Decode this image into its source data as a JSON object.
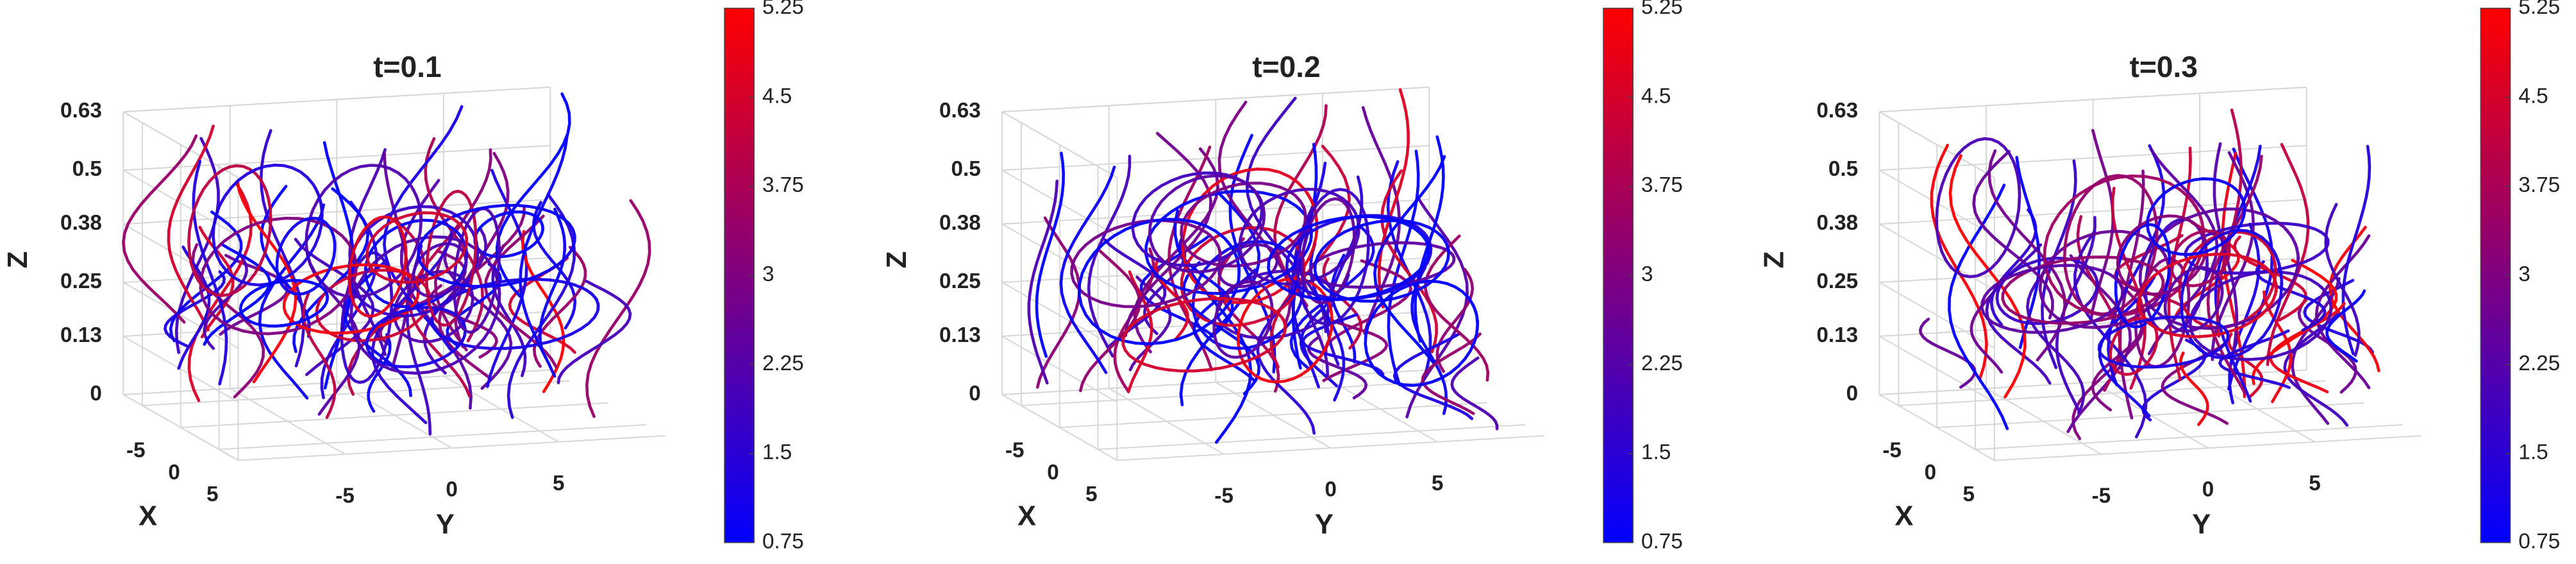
{
  "chart_data": [
    {
      "type": "streamline3d",
      "title": "t=0.1",
      "xlabel": "X",
      "ylabel": "Y",
      "zlabel": "Z",
      "xlim": [
        -7.5,
        7.5
      ],
      "xticks": [
        -5,
        0,
        5
      ],
      "ylim": [
        -10,
        10
      ],
      "yticks": [
        -5,
        0,
        5
      ],
      "zlim": [
        0,
        0.63
      ],
      "zticks": [
        0,
        0.13,
        0.25,
        0.38,
        0.5,
        0.63
      ],
      "clim": [
        0.75,
        5.25
      ],
      "cticks": [
        0.75,
        1.5,
        2.25,
        3,
        3.75,
        4.5,
        5.25
      ],
      "colormap": [
        "#0000ff",
        "#ff0000"
      ],
      "grid": true
    },
    {
      "type": "streamline3d",
      "title": "t=0.2",
      "xlabel": "X",
      "ylabel": "Y",
      "zlabel": "Z",
      "xlim": [
        -7.5,
        7.5
      ],
      "xticks": [
        -5,
        0,
        5
      ],
      "ylim": [
        -10,
        10
      ],
      "yticks": [
        -5,
        0,
        5
      ],
      "zlim": [
        0,
        0.63
      ],
      "zticks": [
        0,
        0.13,
        0.25,
        0.38,
        0.5,
        0.63
      ],
      "clim": [
        0.75,
        5.25
      ],
      "cticks": [
        0.75,
        1.5,
        2.25,
        3,
        3.75,
        4.5,
        5.25
      ],
      "colormap": [
        "#0000ff",
        "#ff0000"
      ],
      "grid": true
    },
    {
      "type": "streamline3d",
      "title": "t=0.3",
      "xlabel": "X",
      "ylabel": "Y",
      "zlabel": "Z",
      "xlim": [
        -7.5,
        7.5
      ],
      "xticks": [
        -5,
        0,
        5
      ],
      "ylim": [
        -10,
        10
      ],
      "yticks": [
        -5,
        0,
        5
      ],
      "zlim": [
        0,
        0.63
      ],
      "zticks": [
        0,
        0.13,
        0.25,
        0.38,
        0.5,
        0.63
      ],
      "clim": [
        0.75,
        5.25
      ],
      "cticks": [
        0.75,
        1.5,
        2.25,
        3,
        3.75,
        4.5,
        5.25
      ],
      "colormap": [
        "#0000ff",
        "#ff0000"
      ],
      "grid": true
    }
  ]
}
